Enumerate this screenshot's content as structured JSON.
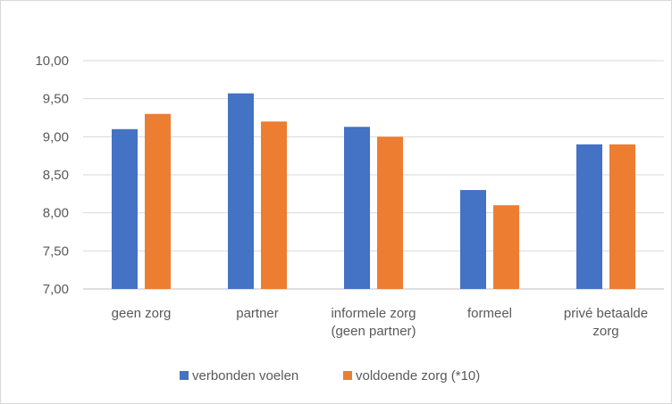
{
  "chart_data": {
    "type": "bar",
    "title": "",
    "xlabel": "",
    "ylabel": "",
    "categories": [
      [
        "geen zorg"
      ],
      [
        "partner"
      ],
      [
        "informele zorg",
        "(geen partner)"
      ],
      [
        "formeel"
      ],
      [
        "privé betaalde",
        "zorg"
      ]
    ],
    "series": [
      {
        "name": "verbonden voelen",
        "color": "#4472C4",
        "values": [
          9.1,
          9.57,
          9.13,
          8.3,
          8.9
        ]
      },
      {
        "name": "voldoende zorg (*10)",
        "color": "#ED7D31",
        "values": [
          9.3,
          9.2,
          9.0,
          8.1,
          8.9
        ]
      }
    ],
    "ylim": [
      7.0,
      10.0
    ],
    "yticks": [
      "7,00",
      "7,50",
      "8,00",
      "8,50",
      "9,00",
      "9,50",
      "10,00"
    ],
    "ytick_values": [
      7.0,
      7.5,
      8.0,
      8.5,
      9.0,
      9.5,
      10.0
    ],
    "grid": true,
    "legend_position": "bottom"
  }
}
